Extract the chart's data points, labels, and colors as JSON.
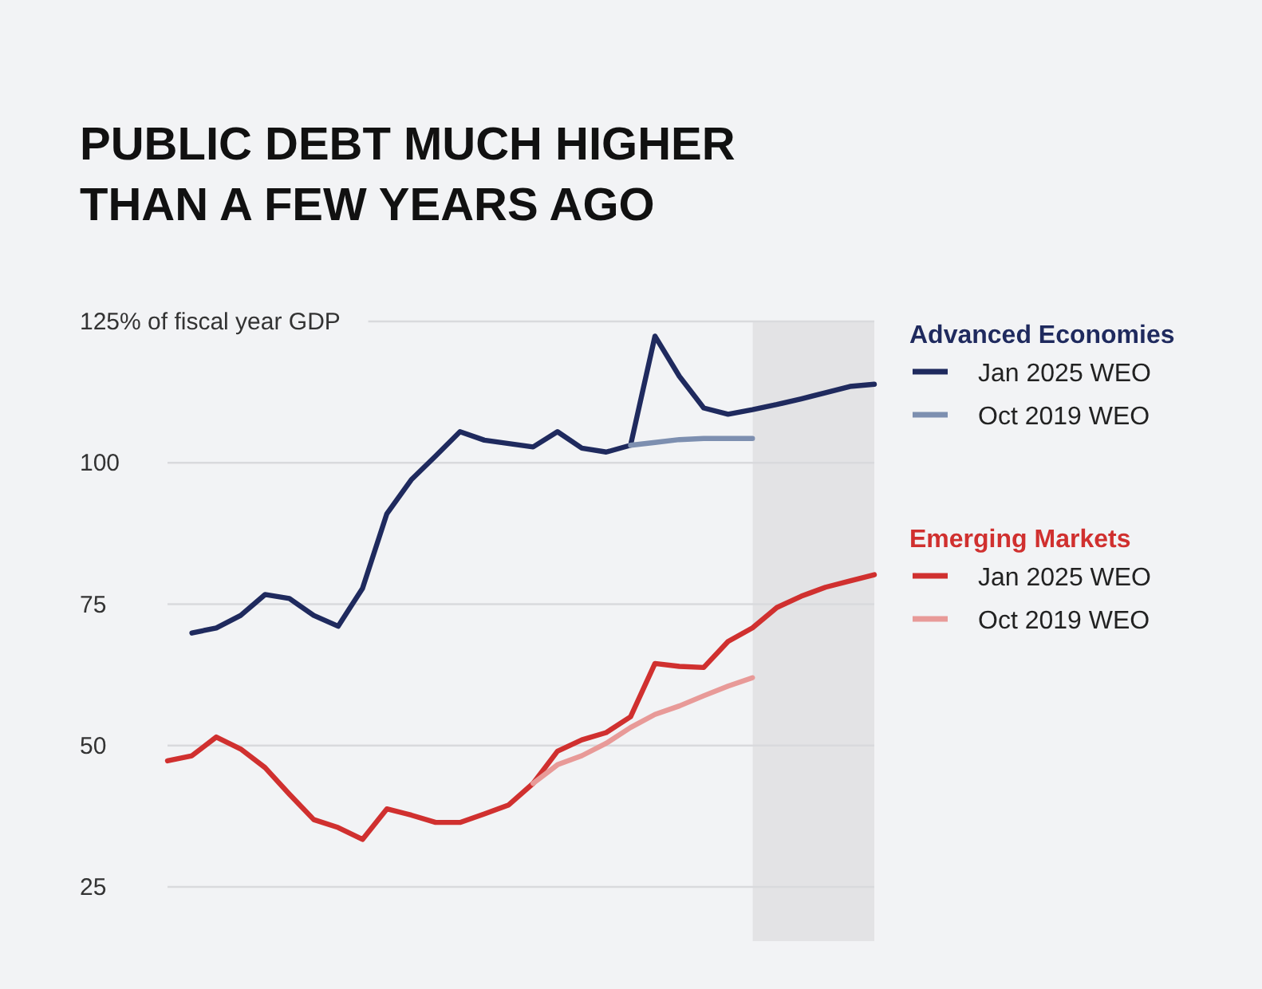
{
  "chart_data": {
    "type": "line",
    "title": "PUBLIC DEBT MUCH HIGHER\nTHAN A FEW YEARS AGO",
    "categories": [
      null,
      null,
      null,
      null,
      null,
      null,
      null,
      null,
      null,
      null,
      null,
      null,
      null,
      null,
      null,
      null,
      null,
      null,
      null,
      null,
      null,
      null,
      null,
      null,
      null,
      null,
      null,
      null,
      null,
      null
    ],
    "series": [
      {
        "name": "Jan 2025 WEO",
        "color": "#1f2a5e",
        "values": [
          null,
          69.9,
          70.8,
          73,
          76.7,
          76,
          73,
          71.1,
          77.8,
          91,
          97,
          101.2,
          105.5,
          104,
          103.4,
          102.8,
          105.5,
          102.6,
          101.9,
          103.1,
          122.4,
          115.3,
          109.7,
          108.6,
          109.4,
          110.3,
          111.3,
          112.4,
          113.5,
          113.9
        ]
      },
      {
        "name": "Oct 2019 WEO",
        "color": "#7d8fb0",
        "values": [
          null,
          null,
          null,
          null,
          null,
          null,
          null,
          null,
          null,
          null,
          null,
          null,
          null,
          null,
          null,
          null,
          null,
          null,
          null,
          103.1,
          103.6,
          104.1,
          104.3,
          104.3,
          104.3,
          null,
          null,
          null,
          null,
          null
        ]
      },
      {
        "name": "Jan 2025 WEO",
        "color": "#d0302f",
        "values": [
          47.3,
          48.2,
          51.5,
          49.4,
          46.1,
          41.4,
          36.9,
          35.5,
          33.4,
          38.8,
          37.7,
          36.4,
          36.4,
          37.9,
          39.5,
          43.3,
          49,
          51,
          52.3,
          55.1,
          64.5,
          64,
          63.8,
          68.4,
          70.8,
          74.4,
          76.4,
          78,
          79.1,
          80.2
        ]
      },
      {
        "name": "Oct 2019 WEO",
        "color": "#e89a98",
        "values": [
          null,
          null,
          null,
          null,
          null,
          null,
          null,
          null,
          null,
          null,
          null,
          null,
          null,
          null,
          null,
          43.3,
          46.6,
          48.2,
          50.4,
          53.2,
          55.5,
          57,
          58.8,
          60.5,
          62,
          null,
          null,
          null,
          null,
          null
        ]
      }
    ],
    "annotations": [
      "Advanced Economies",
      "Emerging Markets"
    ],
    "ylim": [
      25,
      125
    ],
    "yticks": [
      {
        "value": 125,
        "label": "125% of fiscal year GDP"
      },
      100,
      75,
      50,
      25
    ],
    "grid": "y",
    "legend": "right",
    "tick_labels": "y",
    "line_style": "solid",
    "marker": "none"
  }
}
